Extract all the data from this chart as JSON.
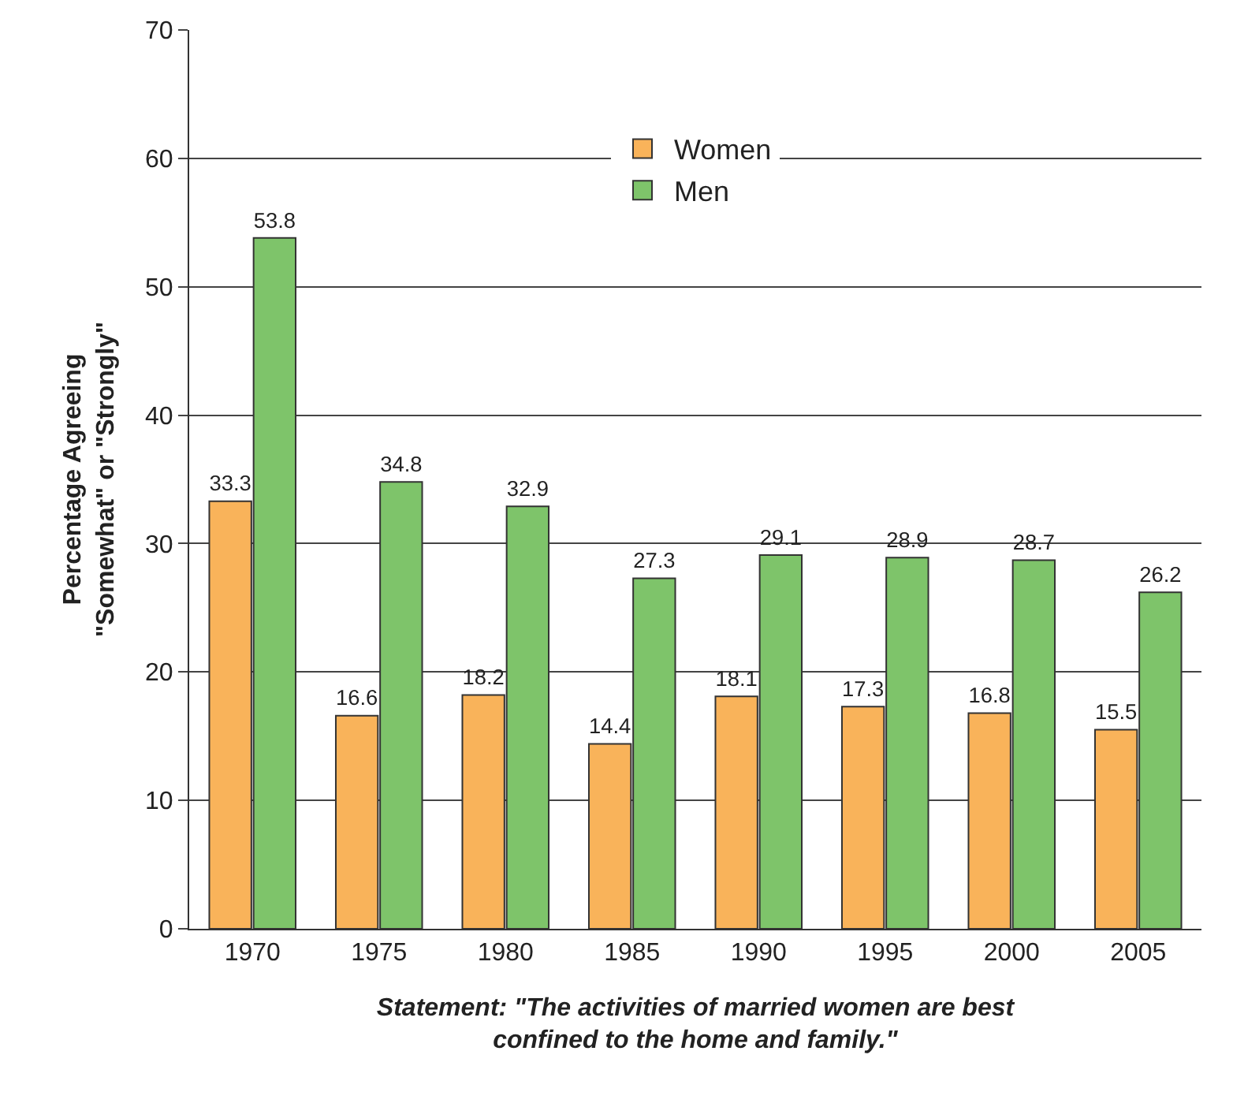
{
  "chart_data": {
    "type": "bar",
    "ylabel": "Percentage Agreeing\n\"Somewhat\" or \"Strongly\"",
    "xlabel": "Statement: \"The activities of married women are best\nconfined to the home and family.\"",
    "categories": [
      "1970",
      "1975",
      "1980",
      "1985",
      "1990",
      "1995",
      "2000",
      "2005"
    ],
    "series": [
      {
        "name": "Women",
        "color": "#f9b35a",
        "values": [
          33.3,
          16.6,
          18.2,
          14.4,
          18.1,
          17.3,
          16.8,
          15.5
        ]
      },
      {
        "name": "Men",
        "color": "#7ec46a",
        "values": [
          53.8,
          34.8,
          32.9,
          27.3,
          29.1,
          28.9,
          28.7,
          26.2
        ]
      }
    ],
    "ylim": [
      0,
      70
    ],
    "yticks": [
      0,
      10,
      20,
      30,
      40,
      50,
      60,
      70
    ],
    "grid": "y",
    "legend": "top",
    "data_labels": true
  }
}
